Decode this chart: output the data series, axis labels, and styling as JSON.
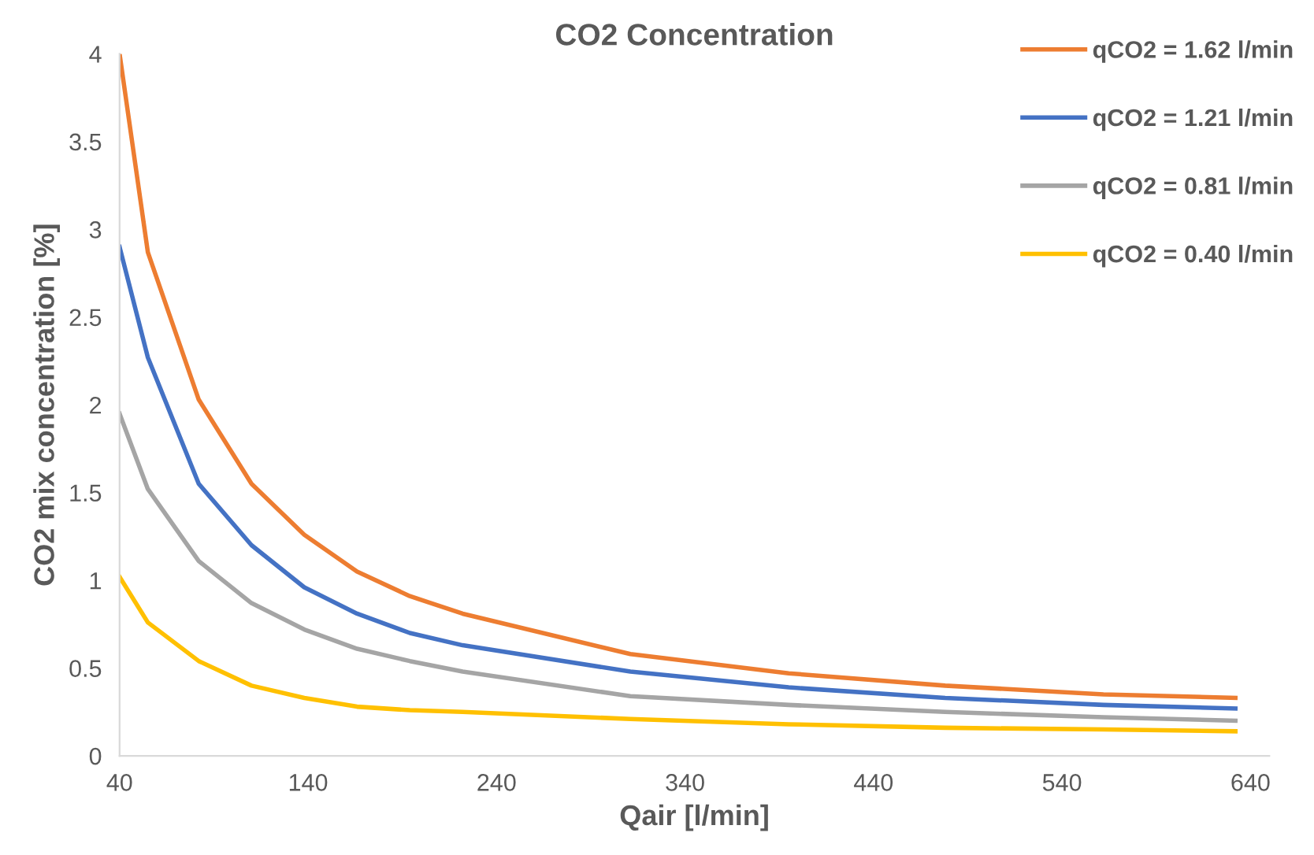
{
  "chart_data": {
    "type": "line",
    "title": "CO2 Concentration",
    "xlabel": "Qair [l/min]",
    "ylabel": "CO2 mix concentration [%]",
    "x": [
      40,
      55,
      82,
      110,
      138,
      166,
      194,
      222,
      311,
      395,
      478,
      562,
      632
    ],
    "series": [
      {
        "name": "qCO2 = 1.62 l/min",
        "color": "#ed7d31",
        "values": [
          4.0,
          2.87,
          2.03,
          1.55,
          1.26,
          1.05,
          0.91,
          0.81,
          0.58,
          0.47,
          0.4,
          0.35,
          0.33
        ]
      },
      {
        "name": "qCO2 = 1.21 l/min",
        "color": "#4472c4",
        "values": [
          2.9,
          2.27,
          1.55,
          1.2,
          0.96,
          0.81,
          0.7,
          0.63,
          0.48,
          0.39,
          0.33,
          0.29,
          0.27
        ]
      },
      {
        "name": "qCO2 = 0.81 l/min",
        "color": "#a5a5a5",
        "values": [
          1.95,
          1.52,
          1.11,
          0.87,
          0.72,
          0.61,
          0.54,
          0.48,
          0.34,
          0.29,
          0.25,
          0.22,
          0.2
        ]
      },
      {
        "name": "qCO2 = 0.40 l/min",
        "color": "#ffc000",
        "values": [
          1.02,
          0.76,
          0.54,
          0.4,
          0.33,
          0.28,
          0.26,
          0.25,
          0.21,
          0.18,
          0.16,
          0.15,
          0.14
        ]
      }
    ],
    "xlim": [
      40,
      650
    ],
    "xticks": [
      40,
      140,
      240,
      340,
      440,
      540,
      640
    ],
    "ylim": [
      0,
      4
    ],
    "yticks": [
      0,
      0.5,
      1,
      1.5,
      2,
      2.5,
      3,
      3.5,
      4
    ],
    "grid": false,
    "legend": "top right",
    "marker": "none",
    "line_style": "solid"
  }
}
